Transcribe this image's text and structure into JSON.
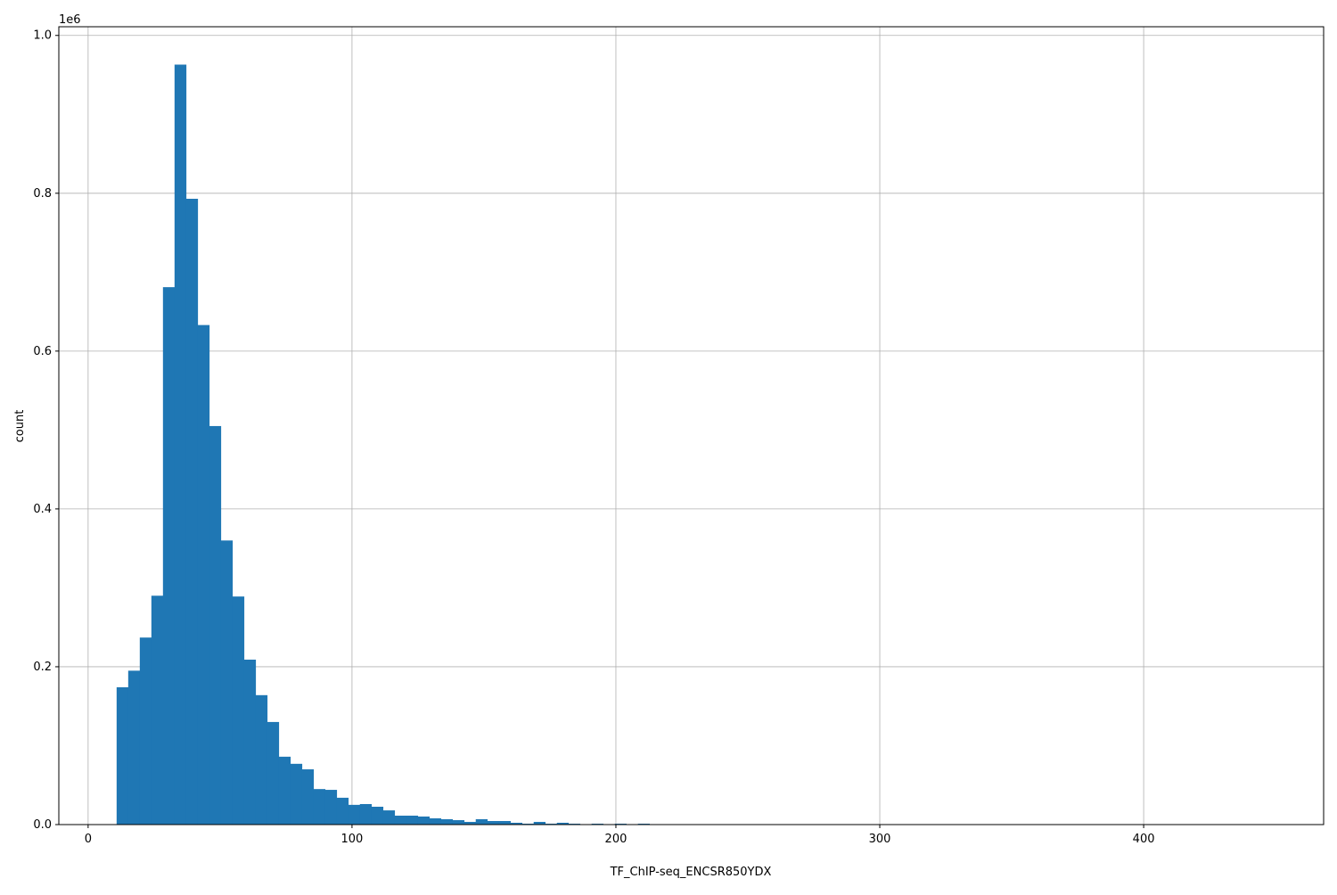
{
  "chart_data": {
    "type": "bar",
    "title": "",
    "xlabel": "TF_ChIP-seq_ENCSR850YDX",
    "ylabel": "count",
    "y_offset_text": "1e6",
    "xlim": [
      -11.1,
      468.2
    ],
    "ylim": [
      0,
      1011000
    ],
    "grid": true,
    "color": "#1f77b4",
    "bin_start": 10.8,
    "bin_width": 4.39,
    "x_ticks": [
      0,
      100,
      200,
      300,
      400
    ],
    "x_tick_labels": [
      "0",
      "100",
      "200",
      "300",
      "400"
    ],
    "y_ticks": [
      0,
      200000,
      400000,
      600000,
      800000,
      1000000
    ],
    "y_tick_labels": [
      "0.0",
      "0.2",
      "0.4",
      "0.6",
      "0.8",
      "1.0"
    ],
    "values": [
      174000,
      195000,
      237000,
      290000,
      681000,
      963000,
      793000,
      633000,
      505000,
      360000,
      289000,
      209000,
      164000,
      130000,
      86000,
      77000,
      70000,
      45000,
      44000,
      34000,
      25000,
      26000,
      22600,
      18000,
      11300,
      11300,
      10200,
      7900,
      6800,
      5600,
      3400,
      6800,
      4500,
      4500,
      2300,
      1100,
      3400,
      1100,
      2300,
      1100,
      400,
      1100,
      300,
      1100,
      200,
      1100,
      0,
      0,
      0,
      0,
      0,
      0,
      0,
      0,
      0,
      0,
      0,
      0,
      0,
      0,
      0,
      0,
      0,
      0,
      0,
      0,
      0,
      0,
      0,
      0,
      0,
      0,
      0,
      0,
      0,
      0,
      0,
      0,
      0,
      0,
      0,
      0,
      0,
      0,
      0,
      0,
      0,
      0,
      0,
      0,
      0,
      0,
      0,
      0,
      0,
      0,
      0,
      0,
      0,
      0
    ]
  }
}
